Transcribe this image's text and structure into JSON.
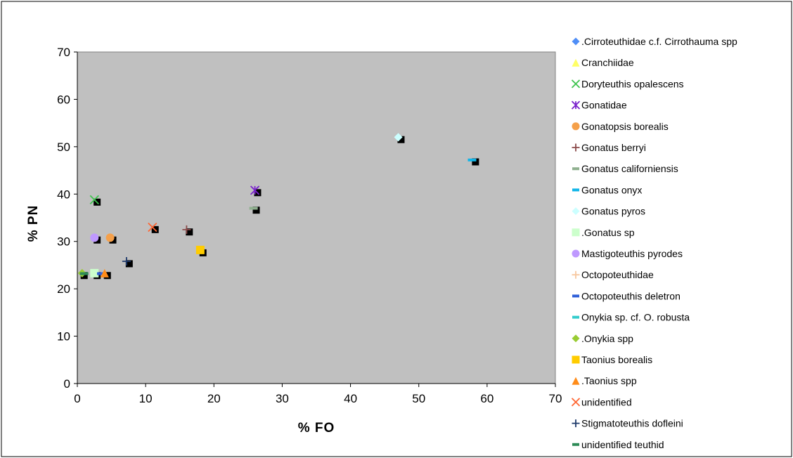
{
  "chart_data": {
    "type": "scatter",
    "xlabel": "% FO",
    "ylabel": "% PN",
    "xlim": [
      0,
      70
    ],
    "ylim": [
      0,
      70
    ],
    "xticks": [
      "0",
      "10",
      "20",
      "30",
      "40",
      "50",
      "60",
      "70"
    ],
    "yticks": [
      "0",
      "10",
      "20",
      "30",
      "40",
      "50",
      "60",
      "70"
    ],
    "plot_background": "#c0c0c0",
    "grid": false,
    "legend_position": "right",
    "series": [
      {
        "name": ".Cirroteuthidae c.f. Cirrothauma spp",
        "marker": "diamond",
        "color": "#4f8ef7",
        "points": []
      },
      {
        "name": "Cranchiidae",
        "marker": "triangle",
        "color": "#ffff66",
        "points": []
      },
      {
        "name": "Doryteuthis opalescens",
        "marker": "x",
        "color": "#3fc34f",
        "points": [
          [
            2.5,
            38.8
          ]
        ]
      },
      {
        "name": "Gonatidae",
        "marker": "asterisk",
        "color": "#7a22cc",
        "points": [
          [
            26,
            40.8
          ]
        ]
      },
      {
        "name": "Gonatopsis borealis",
        "marker": "circle",
        "color": "#f5a04a",
        "points": [
          [
            4.8,
            30.8
          ]
        ]
      },
      {
        "name": "Gonatus berryi",
        "marker": "plus",
        "color": "#8b4a4a",
        "points": [
          [
            16,
            32.5
          ]
        ]
      },
      {
        "name": "Gonatus californiensis",
        "marker": "dash",
        "color": "#8fb08f",
        "points": [
          [
            25.8,
            37
          ]
        ]
      },
      {
        "name": "Gonatus onyx",
        "marker": "dash",
        "color": "#11b5e8",
        "points": [
          [
            57.8,
            47.2
          ]
        ]
      },
      {
        "name": "Gonatus pyros",
        "marker": "diamond",
        "color": "#ccffff",
        "points": [
          [
            47,
            52
          ]
        ]
      },
      {
        "name": ".Gonatus sp",
        "marker": "square",
        "color": "#ccffcc",
        "points": [
          [
            2.5,
            23.3
          ]
        ]
      },
      {
        "name": "Mastigoteuthis pyrodes",
        "marker": "circle",
        "color": "#bf99ff",
        "points": [
          [
            2.5,
            30.8
          ]
        ]
      },
      {
        "name": "Octopoteuthidae",
        "marker": "plus",
        "color": "#f7c8a0",
        "points": []
      },
      {
        "name": "Octopoteuthis deletron",
        "marker": "dash",
        "color": "#2f5fd8",
        "points": [
          [
            3.5,
            23.2
          ]
        ]
      },
      {
        "name": "Onykia sp. cf. O. robusta",
        "marker": "dash",
        "color": "#33cccc",
        "points": []
      },
      {
        "name": ".Onykia spp",
        "marker": "diamond",
        "color": "#99cc33",
        "points": [
          [
            0.7,
            23.3
          ]
        ]
      },
      {
        "name": "Taonius borealis",
        "marker": "square",
        "color": "#ffcc00",
        "points": [
          [
            18,
            28.2
          ]
        ]
      },
      {
        "name": ".Taonius spp",
        "marker": "triangle",
        "color": "#ff8c1a",
        "points": [
          [
            4,
            23.3
          ]
        ]
      },
      {
        "name": "unidentified",
        "marker": "x",
        "color": "#ff6633",
        "points": [
          [
            11,
            33
          ]
        ]
      },
      {
        "name": "Stigmatoteuthis dofleini",
        "marker": "plus",
        "color": "#1f3a6b",
        "points": [
          [
            7.2,
            25.8
          ]
        ]
      },
      {
        "name": "unidentified teuthid",
        "marker": "dash",
        "color": "#2e8b57",
        "points": [
          [
            1,
            23.2
          ]
        ]
      }
    ],
    "shadow_points": [
      [
        2.9,
        38.3
      ],
      [
        26.4,
        40.3
      ],
      [
        5.2,
        30.3
      ],
      [
        16.4,
        32
      ],
      [
        26.2,
        36.6
      ],
      [
        58.3,
        46.8
      ],
      [
        47.4,
        51.5
      ],
      [
        2.9,
        22.8
      ],
      [
        2.9,
        30.3
      ],
      [
        1.0,
        22.8
      ],
      [
        18.4,
        27.6
      ],
      [
        4.4,
        22.8
      ],
      [
        11.4,
        32.5
      ],
      [
        7.6,
        25.3
      ]
    ]
  }
}
